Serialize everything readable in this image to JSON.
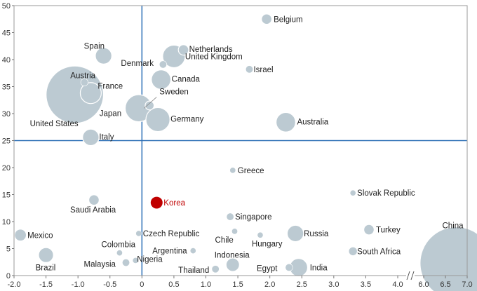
{
  "chart_data": {
    "type": "bubble",
    "x_ticks": [
      "-2.0",
      "-1.5",
      "-1.0",
      "-0.5",
      "0",
      "0.5",
      "1.0",
      "1.5",
      "2.0",
      "2.5",
      "3.0",
      "3.5",
      "4.0",
      "6.0",
      "6.5",
      "7.0"
    ],
    "x_tick_values": [
      -2.0,
      -1.5,
      -1.0,
      -0.5,
      0,
      0.5,
      1.0,
      1.5,
      2.0,
      2.5,
      3.0,
      3.5,
      4.0,
      6.0,
      6.5,
      7.0
    ],
    "x_axis_break": {
      "from": 4.0,
      "to": 6.0
    },
    "y_ticks": [
      "0",
      "5",
      "10",
      "15",
      "20",
      "25",
      "30",
      "35",
      "40",
      "45",
      "50"
    ],
    "y_tick_values": [
      0,
      5,
      10,
      15,
      20,
      25,
      30,
      35,
      40,
      45,
      50
    ],
    "xlim": [
      -2.1,
      7.0
    ],
    "ylim": [
      0,
      50
    ],
    "reference_lines": {
      "x": 0,
      "y": 25
    },
    "colors": {
      "bubble": "#bccad2",
      "highlight": "#c00000",
      "ref_line": "#2a6eb5",
      "gridline": "#d0d0d0"
    },
    "points": [
      {
        "name": "Belgium",
        "x": 1.95,
        "y": 47.5,
        "size": 5
      },
      {
        "name": "Spain",
        "x": -0.6,
        "y": 40.7,
        "size": 9
      },
      {
        "name": "Netherlands",
        "x": 0.65,
        "y": 41.8,
        "size": 5
      },
      {
        "name": "Denmark",
        "x": 0.33,
        "y": 39.1,
        "size": 3
      },
      {
        "name": "United Kingdom",
        "x": 0.5,
        "y": 40.6,
        "size": 13
      },
      {
        "name": "Israel",
        "x": 1.68,
        "y": 38.2,
        "size": 3
      },
      {
        "name": "Austria",
        "x": -0.9,
        "y": 35.8,
        "size": 3
      },
      {
        "name": "France",
        "x": -0.8,
        "y": 33.8,
        "size": 12
      },
      {
        "name": "Canada",
        "x": 0.3,
        "y": 36.3,
        "size": 11
      },
      {
        "name": "United States",
        "x": -1.05,
        "y": 33.5,
        "size": 36
      },
      {
        "name": "Sweden",
        "x": 0.12,
        "y": 31.5,
        "size": 4
      },
      {
        "name": "Japan",
        "x": -0.05,
        "y": 31.0,
        "size": 16
      },
      {
        "name": "Germany",
        "x": 0.25,
        "y": 28.9,
        "size": 14
      },
      {
        "name": "Australia",
        "x": 2.25,
        "y": 28.4,
        "size": 11
      },
      {
        "name": "Italy",
        "x": -0.8,
        "y": 25.6,
        "size": 9
      },
      {
        "name": "Greece",
        "x": 1.42,
        "y": 19.5,
        "size": 2
      },
      {
        "name": "Slovak Republic",
        "x": 3.3,
        "y": 15.3,
        "size": 2
      },
      {
        "name": "Saudi Arabia",
        "x": -0.75,
        "y": 14.0,
        "size": 5
      },
      {
        "name": "Korea",
        "x": 0.23,
        "y": 13.5,
        "size": 6,
        "highlight": true
      },
      {
        "name": "Singapore",
        "x": 1.38,
        "y": 10.9,
        "size": 3
      },
      {
        "name": "Mexico",
        "x": -1.9,
        "y": 7.5,
        "size": 6
      },
      {
        "name": "Czech Republic",
        "x": -0.05,
        "y": 7.8,
        "size": 2
      },
      {
        "name": "Chile",
        "x": 1.45,
        "y": 8.2,
        "size": 2
      },
      {
        "name": "Hungary",
        "x": 1.85,
        "y": 7.5,
        "size": 2
      },
      {
        "name": "Russia",
        "x": 2.4,
        "y": 7.8,
        "size": 9
      },
      {
        "name": "Turkey",
        "x": 3.55,
        "y": 8.5,
        "size": 5
      },
      {
        "name": "Colombia",
        "x": -0.35,
        "y": 4.2,
        "size": 2
      },
      {
        "name": "Argentina",
        "x": 0.8,
        "y": 4.6,
        "size": 2
      },
      {
        "name": "South Africa",
        "x": 3.3,
        "y": 4.5,
        "size": 4
      },
      {
        "name": "Brazil",
        "x": -1.5,
        "y": 3.8,
        "size": 8
      },
      {
        "name": "Malaysia",
        "x": -0.25,
        "y": 2.4,
        "size": 3
      },
      {
        "name": "Nigeria",
        "x": -0.1,
        "y": 2.8,
        "size": 2
      },
      {
        "name": "Indonesia",
        "x": 1.42,
        "y": 2.0,
        "size": 7
      },
      {
        "name": "Thailand",
        "x": 1.15,
        "y": 1.2,
        "size": 3
      },
      {
        "name": "Egypt",
        "x": 2.3,
        "y": 1.5,
        "size": 3
      },
      {
        "name": "India",
        "x": 2.45,
        "y": 1.5,
        "size": 10
      },
      {
        "name": "China",
        "x": 6.75,
        "y": 2.3,
        "size": 46
      }
    ]
  }
}
